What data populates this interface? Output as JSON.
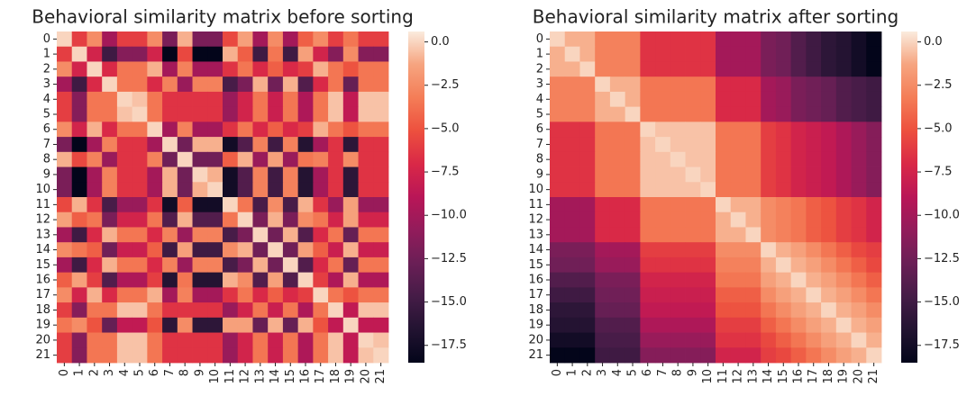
{
  "chart_data": [
    {
      "type": "heatmap",
      "title": "Behavioral similarity matrix before sorting",
      "categories": [
        "0",
        "1",
        "2",
        "3",
        "4",
        "5",
        "6",
        "7",
        "8",
        "9",
        "10",
        "11",
        "12",
        "13",
        "14",
        "15",
        "16",
        "17",
        "18",
        "19",
        "20",
        "21"
      ],
      "values": [
        [
          0,
          -6,
          -2.5,
          -10,
          -6,
          -6,
          -2.5,
          -12,
          -1,
          -12,
          -12,
          -5.5,
          -1.5,
          -10,
          -2.5,
          -10,
          -4.5,
          -2.5,
          -6,
          -3.5,
          -6,
          -6
        ],
        [
          -6,
          0,
          -7.5,
          -15,
          -11.5,
          -11.5,
          -7.5,
          -18.5,
          -5.5,
          -18.5,
          -18.5,
          -1,
          -4.5,
          -15,
          -3.5,
          -15,
          -1.5,
          -7.5,
          -11.5,
          -2.5,
          -11.5,
          -11.5
        ],
        [
          -2.5,
          -7.5,
          0,
          -7,
          -3.5,
          -3.5,
          -1,
          -10,
          -3,
          -10,
          -10,
          -6.5,
          -3.5,
          -7,
          -4.5,
          -7,
          -6,
          -1,
          -3.5,
          -5,
          -3.5,
          -3.5
        ],
        [
          -10,
          -15,
          -7,
          0,
          -3.5,
          -3.5,
          -7,
          -3,
          -10.5,
          -3,
          -3,
          -14.5,
          -12,
          -1,
          -12.5,
          -1,
          -14,
          -7,
          -3.5,
          -13,
          -3.5,
          -3.5
        ],
        [
          -6,
          -11.5,
          -3.5,
          -3.5,
          0,
          -0.5,
          -3.5,
          -6.5,
          -6.5,
          -6.5,
          -6.5,
          -10.5,
          -7.5,
          -3.5,
          -8,
          -3.5,
          -9.5,
          -3.5,
          -0.5,
          -8.5,
          -0.5,
          -0.5
        ],
        [
          -6,
          -11.5,
          -3.5,
          -3.5,
          -0.5,
          0,
          -3.5,
          -6.5,
          -6.5,
          -6.5,
          -6.5,
          -10.5,
          -7.5,
          -3.5,
          -8,
          -3.5,
          -9.5,
          -3.5,
          -0.5,
          -8.5,
          -0.5,
          -0.5
        ],
        [
          -2.5,
          -7.5,
          -1,
          -7,
          -3.5,
          -3.5,
          0,
          -10,
          -3,
          -10,
          -10,
          -6.5,
          -3.5,
          -7,
          -4.5,
          -7,
          -6,
          -1,
          -3.5,
          -5,
          -3.5,
          -3.5
        ],
        [
          -12,
          -18.5,
          -10,
          -3,
          -6.5,
          -6.5,
          -10,
          0,
          -12.5,
          -1,
          -1,
          -17.5,
          -14,
          -3,
          -15,
          -3,
          -16.5,
          -10,
          -6.5,
          -16,
          -6.5,
          -6.5
        ],
        [
          -1,
          -5.5,
          -3,
          -10.5,
          -6.5,
          -6.5,
          -3,
          -12.5,
          0,
          -12.5,
          -12.5,
          -4.5,
          -1,
          -10.5,
          -1.5,
          -10.5,
          -3.5,
          -3,
          -6.5,
          -2.5,
          -6.5,
          -6.5
        ],
        [
          -12,
          -18.5,
          -10,
          -3,
          -6.5,
          -6.5,
          -10,
          -1,
          -12.5,
          0,
          -1,
          -17.5,
          -14,
          -3,
          -15,
          -3,
          -16.5,
          -10,
          -6.5,
          -16,
          -6.5,
          -6.5
        ],
        [
          -12,
          -18.5,
          -10,
          -3,
          -6.5,
          -6.5,
          -10,
          -1,
          -12.5,
          -1,
          0,
          -17.5,
          -14,
          -3,
          -15,
          -3,
          -16.5,
          -10,
          -6.5,
          -16,
          -6.5,
          -6.5
        ],
        [
          -5.5,
          -1,
          -6.5,
          -14.5,
          -10.5,
          -10.5,
          -6.5,
          -17.5,
          -4.5,
          -17.5,
          -17.5,
          0,
          -3.5,
          -14.5,
          -2.5,
          -14.5,
          -1,
          -6.5,
          -10.5,
          -1.5,
          -10.5,
          -10.5
        ],
        [
          -1.5,
          -4.5,
          -3.5,
          -12,
          -7.5,
          -7.5,
          -3.5,
          -14,
          -1,
          -14,
          -14,
          -3.5,
          0,
          -12,
          -1,
          -12,
          -2.5,
          -3.5,
          -7.5,
          -1.5,
          -7.5,
          -7.5
        ],
        [
          -10,
          -15,
          -7,
          -1,
          -3.5,
          -3.5,
          -7,
          -3,
          -10.5,
          -3,
          -3,
          -14.5,
          -12,
          0,
          -12.5,
          -1,
          -14,
          -7,
          -3.5,
          -13,
          -3.5,
          -3.5
        ],
        [
          -2.5,
          -3.5,
          -4.5,
          -12.5,
          -8,
          -8,
          -4.5,
          -15,
          -1.5,
          -15,
          -15,
          -2.5,
          -1,
          -12.5,
          0,
          -12.5,
          -1.5,
          -4.5,
          -8,
          -1,
          -8,
          -8
        ],
        [
          -10,
          -15,
          -7,
          -1,
          -3.5,
          -3.5,
          -7,
          -3,
          -10.5,
          -3,
          -3,
          -14.5,
          -12,
          -1,
          -12.5,
          0,
          -14,
          -7,
          -3.5,
          -13,
          -3.5,
          -3.5
        ],
        [
          -4.5,
          -1.5,
          -6,
          -14,
          -9.5,
          -9.5,
          -6,
          -16.5,
          -3.5,
          -16.5,
          -16.5,
          -1,
          -2.5,
          -14,
          -1.5,
          -14,
          0,
          -6,
          -9.5,
          -1,
          -9.5,
          -9.5
        ],
        [
          -2.5,
          -7.5,
          -1,
          -7,
          -3.5,
          -3.5,
          -1,
          -10,
          -3,
          -10,
          -10,
          -6.5,
          -3.5,
          -7,
          -4.5,
          -7,
          -6,
          0,
          -3.5,
          -5,
          -3.5,
          -3.5
        ],
        [
          -6,
          -11.5,
          -3.5,
          -3.5,
          -0.5,
          -0.5,
          -3.5,
          -6.5,
          -6.5,
          -6.5,
          -6.5,
          -10.5,
          -7.5,
          -3.5,
          -8,
          -3.5,
          -9.5,
          -3.5,
          0,
          -8.5,
          -0.5,
          -0.5
        ],
        [
          -3.5,
          -2.5,
          -5,
          -13,
          -8.5,
          -8.5,
          -5,
          -16,
          -2.5,
          -16,
          -16,
          -1.5,
          -1.5,
          -13,
          -1,
          -13,
          -1,
          -5,
          -8.5,
          0,
          -8.5,
          -8.5
        ],
        [
          -6,
          -11.5,
          -3.5,
          -3.5,
          -0.5,
          -0.5,
          -3.5,
          -6.5,
          -6.5,
          -6.5,
          -6.5,
          -10.5,
          -7.5,
          -3.5,
          -8,
          -3.5,
          -9.5,
          -3.5,
          -0.5,
          -8.5,
          0,
          -0.5
        ],
        [
          -6,
          -11.5,
          -3.5,
          -3.5,
          -0.5,
          -0.5,
          -3.5,
          -6.5,
          -6.5,
          -6.5,
          -6.5,
          -10.5,
          -7.5,
          -3.5,
          -8,
          -3.5,
          -9.5,
          -3.5,
          -0.5,
          -8.5,
          -0.5,
          0
        ]
      ],
      "zlim": [
        -18.5,
        0.6
      ],
      "zticks": [
        {
          "value": 0,
          "label": "0.0"
        },
        {
          "value": -2.5,
          "label": "−2.5"
        },
        {
          "value": -5,
          "label": "−5.0"
        },
        {
          "value": -7.5,
          "label": "−7.5"
        },
        {
          "value": -10,
          "label": "−10.0"
        },
        {
          "value": -12.5,
          "label": "−12.5"
        },
        {
          "value": -15,
          "label": "−15.0"
        },
        {
          "value": -17.5,
          "label": "−17.5"
        }
      ],
      "colormap": [
        "#03051a",
        "#221331",
        "#451c47",
        "#6a1f56",
        "#921c5b",
        "#b91657",
        "#d92847",
        "#ed503e",
        "#f47d57",
        "#f6a47f",
        "#faebdd"
      ]
    },
    {
      "type": "heatmap",
      "title": "Behavioral similarity matrix after sorting",
      "categories": [
        "0",
        "1",
        "2",
        "3",
        "4",
        "5",
        "6",
        "7",
        "8",
        "9",
        "10",
        "11",
        "12",
        "13",
        "14",
        "15",
        "16",
        "17",
        "18",
        "19",
        "20",
        "21"
      ],
      "values": [
        [
          0,
          -1,
          -1,
          -3,
          -3,
          -3,
          -6.5,
          -6.5,
          -6.5,
          -6.5,
          -6.5,
          -10,
          -10,
          -10,
          -12,
          -12.5,
          -14,
          -15,
          -16,
          -16.5,
          -17.5,
          -18.5
        ],
        [
          -1,
          0,
          -1,
          -3,
          -3,
          -3,
          -6.5,
          -6.5,
          -6.5,
          -6.5,
          -6.5,
          -10,
          -10,
          -10,
          -12,
          -12.5,
          -14,
          -15,
          -16,
          -16.5,
          -17.5,
          -18.5
        ],
        [
          -1,
          -1,
          0,
          -3,
          -3,
          -3,
          -6.5,
          -6.5,
          -6.5,
          -6.5,
          -6.5,
          -10,
          -10,
          -10,
          -12,
          -12.5,
          -14,
          -15,
          -16,
          -16.5,
          -17.5,
          -18.5
        ],
        [
          -3,
          -3,
          -3,
          0,
          -1,
          -1,
          -3.5,
          -3.5,
          -3.5,
          -3.5,
          -3.5,
          -7,
          -7,
          -7,
          -10,
          -10.5,
          -12,
          -12.5,
          -13,
          -14,
          -14.5,
          -15
        ],
        [
          -3,
          -3,
          -3,
          -1,
          0,
          -1,
          -3.5,
          -3.5,
          -3.5,
          -3.5,
          -3.5,
          -7,
          -7,
          -7,
          -10,
          -10.5,
          -12,
          -12.5,
          -13,
          -14,
          -14.5,
          -15
        ],
        [
          -3,
          -3,
          -3,
          -1,
          -1,
          0,
          -3.5,
          -3.5,
          -3.5,
          -3.5,
          -3.5,
          -7,
          -7,
          -7,
          -10,
          -10.5,
          -12,
          -12.5,
          -13,
          -14,
          -14.5,
          -15
        ],
        [
          -6.5,
          -6.5,
          -6.5,
          -3.5,
          -3.5,
          -3.5,
          0,
          -0.5,
          -0.5,
          -0.5,
          -0.5,
          -3.5,
          -3.5,
          -3.5,
          -6,
          -6.5,
          -7.5,
          -8,
          -8.5,
          -9.5,
          -10.5,
          -11.5
        ],
        [
          -6.5,
          -6.5,
          -6.5,
          -3.5,
          -3.5,
          -3.5,
          -0.5,
          0,
          -0.5,
          -0.5,
          -0.5,
          -3.5,
          -3.5,
          -3.5,
          -6,
          -6.5,
          -7.5,
          -8,
          -8.5,
          -9.5,
          -10.5,
          -11.5
        ],
        [
          -6.5,
          -6.5,
          -6.5,
          -3.5,
          -3.5,
          -3.5,
          -0.5,
          -0.5,
          0,
          -0.5,
          -0.5,
          -3.5,
          -3.5,
          -3.5,
          -6,
          -6.5,
          -7.5,
          -8,
          -8.5,
          -9.5,
          -10.5,
          -11.5
        ],
        [
          -6.5,
          -6.5,
          -6.5,
          -3.5,
          -3.5,
          -3.5,
          -0.5,
          -0.5,
          -0.5,
          0,
          -0.5,
          -3.5,
          -3.5,
          -3.5,
          -6,
          -6.5,
          -7.5,
          -8,
          -8.5,
          -9.5,
          -10.5,
          -11.5
        ],
        [
          -6.5,
          -6.5,
          -6.5,
          -3.5,
          -3.5,
          -3.5,
          -0.5,
          -0.5,
          -0.5,
          -0.5,
          0,
          -3.5,
          -3.5,
          -3.5,
          -6,
          -6.5,
          -7.5,
          -8,
          -8.5,
          -9.5,
          -10.5,
          -11.5
        ],
        [
          -10,
          -10,
          -10,
          -7,
          -7,
          -7,
          -3.5,
          -3.5,
          -3.5,
          -3.5,
          -3.5,
          0,
          -1,
          -1,
          -2.5,
          -3,
          -3.5,
          -4.5,
          -5,
          -6,
          -6.5,
          -7.5
        ],
        [
          -10,
          -10,
          -10,
          -7,
          -7,
          -7,
          -3.5,
          -3.5,
          -3.5,
          -3.5,
          -3.5,
          -1,
          0,
          -1,
          -2.5,
          -3,
          -3.5,
          -4.5,
          -5,
          -6,
          -6.5,
          -7.5
        ],
        [
          -10,
          -10,
          -10,
          -7,
          -7,
          -7,
          -3.5,
          -3.5,
          -3.5,
          -3.5,
          -3.5,
          -1,
          -1,
          0,
          -2.5,
          -3,
          -3.5,
          -4.5,
          -5,
          -6,
          -6.5,
          -7.5
        ],
        [
          -12,
          -12,
          -12,
          -10,
          -10,
          -10,
          -6,
          -6,
          -6,
          -6,
          -6,
          -2.5,
          -2.5,
          -2.5,
          0,
          -1,
          -1.5,
          -2.5,
          -3.5,
          -4.5,
          -5.5,
          -6
        ],
        [
          -12.5,
          -12.5,
          -12.5,
          -10.5,
          -10.5,
          -10.5,
          -6.5,
          -6.5,
          -6.5,
          -6.5,
          -6.5,
          -3,
          -3,
          -3,
          -1,
          0,
          -1,
          -1.5,
          -2.5,
          -3.5,
          -4.5,
          -5.5
        ],
        [
          -14,
          -14,
          -14,
          -12,
          -12,
          -12,
          -7.5,
          -7.5,
          -7.5,
          -7.5,
          -7.5,
          -3.5,
          -3.5,
          -3.5,
          -1.5,
          -1,
          0,
          -1,
          -1.5,
          -2.5,
          -3.5,
          -4.5
        ],
        [
          -15,
          -15,
          -15,
          -12.5,
          -12.5,
          -12.5,
          -8,
          -8,
          -8,
          -8,
          -8,
          -4.5,
          -4.5,
          -4.5,
          -2.5,
          -1.5,
          -1,
          0,
          -1,
          -1.5,
          -2.5,
          -3.5
        ],
        [
          -16,
          -16,
          -16,
          -13,
          -13,
          -13,
          -8.5,
          -8.5,
          -8.5,
          -8.5,
          -8.5,
          -5,
          -5,
          -5,
          -3.5,
          -2.5,
          -1.5,
          -1,
          0,
          -1,
          -1.5,
          -2.5
        ],
        [
          -16.5,
          -16.5,
          -16.5,
          -14,
          -14,
          -14,
          -9.5,
          -9.5,
          -9.5,
          -9.5,
          -9.5,
          -6,
          -6,
          -6,
          -4.5,
          -3.5,
          -2.5,
          -1.5,
          -1,
          0,
          -1,
          -1.5
        ],
        [
          -17.5,
          -17.5,
          -17.5,
          -14.5,
          -14.5,
          -14.5,
          -10.5,
          -10.5,
          -10.5,
          -10.5,
          -10.5,
          -6.5,
          -6.5,
          -6.5,
          -5.5,
          -4.5,
          -3.5,
          -2.5,
          -1.5,
          -1,
          0,
          -1
        ],
        [
          -18.5,
          -18.5,
          -18.5,
          -15,
          -15,
          -15,
          -11.5,
          -11.5,
          -11.5,
          -11.5,
          -11.5,
          -7.5,
          -7.5,
          -7.5,
          -6,
          -5.5,
          -4.5,
          -3.5,
          -2.5,
          -1.5,
          -1,
          0
        ]
      ],
      "zlim": [
        -18.5,
        0.6
      ],
      "zticks": [
        {
          "value": 0,
          "label": "0.0"
        },
        {
          "value": -2.5,
          "label": "−2.5"
        },
        {
          "value": -5,
          "label": "−5.0"
        },
        {
          "value": -7.5,
          "label": "−7.5"
        },
        {
          "value": -10,
          "label": "−10.0"
        },
        {
          "value": -12.5,
          "label": "−12.5"
        },
        {
          "value": -15,
          "label": "−15.0"
        },
        {
          "value": -17.5,
          "label": "−17.5"
        }
      ],
      "colormap": [
        "#03051a",
        "#221331",
        "#451c47",
        "#6a1f56",
        "#921c5b",
        "#b91657",
        "#d92847",
        "#ed503e",
        "#f47d57",
        "#f6a47f",
        "#faebdd"
      ]
    }
  ]
}
